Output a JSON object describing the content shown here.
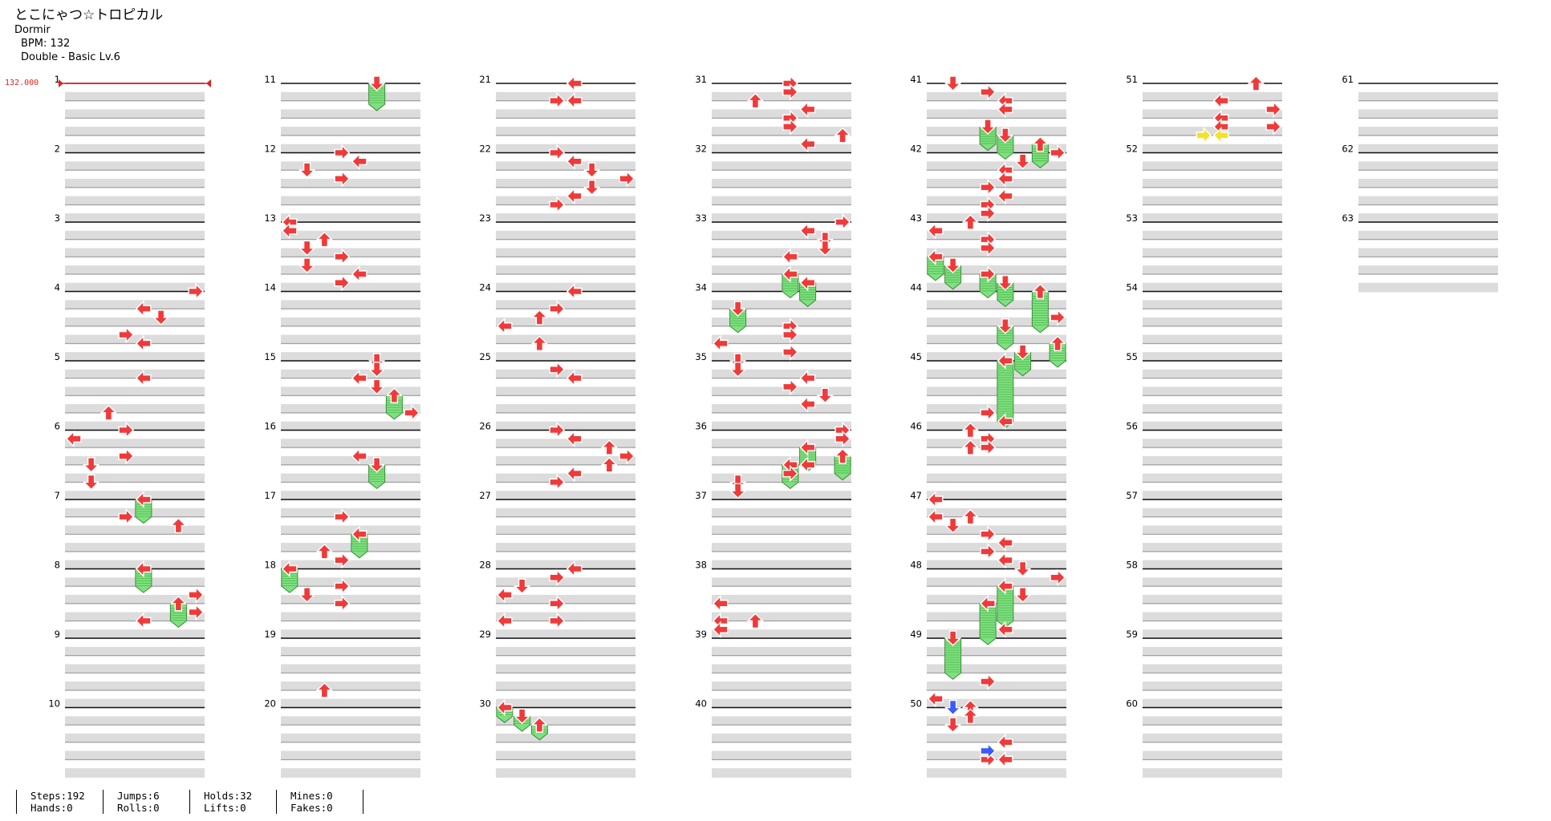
{
  "song": {
    "title": "とこにゃつ☆トロピカル",
    "artist": "Dormir",
    "bpm": "BPM: 132",
    "chart": "Double - Basic  Lv.6"
  },
  "bpm_marker": "132.000",
  "measure_labels": [
    "1",
    "2",
    "3",
    "4",
    "5",
    "6",
    "7",
    "8",
    "9",
    "10",
    "11",
    "12",
    "13",
    "14",
    "15",
    "16",
    "17",
    "18",
    "19",
    "20",
    "21",
    "22",
    "23",
    "24",
    "25",
    "26",
    "27",
    "28",
    "29",
    "30",
    "31",
    "32",
    "33",
    "34",
    "35",
    "36",
    "37",
    "38",
    "39",
    "40",
    "41",
    "42",
    "43",
    "44",
    "45",
    "46",
    "47",
    "48",
    "49",
    "50",
    "51",
    "52",
    "53",
    "54",
    "55",
    "56",
    "57",
    "58",
    "59",
    "60",
    "61",
    "62",
    "63"
  ],
  "stats": {
    "steps": "Steps:192",
    "hands": "Hands:0",
    "jumps": "Jumps:6",
    "rolls": "Rolls:0",
    "holds": "Holds:32",
    "lifts": "Lifts:0",
    "mines": "Mines:0",
    "fakes": "Fakes:0"
  },
  "colors": {
    "arrow": "#f03a3a",
    "hold": "#7fe07f",
    "special_blue": "#3b5bff",
    "special_yellow": "#f2e22a",
    "stripe": "#dcdcdc",
    "bpm_line": "#e02020"
  },
  "notes": [
    {
      "m": 1,
      "b": 0,
      "l": 0,
      "type": "bpm"
    },
    {
      "m": 4,
      "b": 0,
      "l": 7,
      "d": "R"
    },
    {
      "m": 4,
      "b": 1,
      "l": 4,
      "d": "L"
    },
    {
      "m": 4,
      "b": 1.5,
      "l": 5,
      "d": "D"
    },
    {
      "m": 4,
      "b": 2.5,
      "l": 3,
      "d": "R"
    },
    {
      "m": 4,
      "b": 3,
      "l": 4,
      "d": "L"
    },
    {
      "m": 5,
      "b": 1,
      "l": 4,
      "d": "L"
    },
    {
      "m": 5,
      "b": 3,
      "l": 2,
      "d": "U"
    },
    {
      "m": 5,
      "b": 4,
      "l": 3,
      "d": "R"
    },
    {
      "m": 6,
      "b": 0.5,
      "l": 0,
      "d": "L"
    },
    {
      "m": 6,
      "b": 1.5,
      "l": 3,
      "d": "R"
    },
    {
      "m": 6,
      "b": 2,
      "l": 1,
      "d": "D"
    },
    {
      "m": 6,
      "b": 3,
      "l": 1,
      "d": "D"
    },
    {
      "m": 7,
      "b": 0,
      "l": 4,
      "d": "L",
      "hold": 1
    },
    {
      "m": 7,
      "b": 1,
      "l": 3,
      "d": "R"
    },
    {
      "m": 7,
      "b": 1.5,
      "l": 6,
      "d": "U"
    },
    {
      "m": 8,
      "b": 0,
      "l": 4,
      "d": "L",
      "hold": 1
    },
    {
      "m": 8,
      "b": 1.5,
      "l": 7,
      "d": "R"
    },
    {
      "m": 8,
      "b": 2,
      "l": 6,
      "d": "U",
      "hold": 1
    },
    {
      "m": 8,
      "b": 2.5,
      "l": 7,
      "d": "R"
    },
    {
      "m": 8,
      "b": 3,
      "l": 4,
      "d": "L"
    },
    {
      "m": 11,
      "b": 0,
      "l": 5,
      "d": "D",
      "hold": 1.2
    },
    {
      "m": 12,
      "b": 0,
      "l": 3,
      "d": "R"
    },
    {
      "m": 12,
      "b": 0.5,
      "l": 4,
      "d": "L"
    },
    {
      "m": 12,
      "b": 1,
      "l": 1,
      "d": "D"
    },
    {
      "m": 12,
      "b": 1.5,
      "l": 3,
      "d": "R"
    },
    {
      "m": 13,
      "b": 0,
      "l": 0,
      "d": "L"
    },
    {
      "m": 13,
      "b": 0.5,
      "l": 0,
      "d": "L"
    },
    {
      "m": 13,
      "b": 1,
      "l": 2,
      "d": "U"
    },
    {
      "m": 13,
      "b": 1.5,
      "l": 1,
      "d": "D"
    },
    {
      "m": 13,
      "b": 2,
      "l": 3,
      "d": "R"
    },
    {
      "m": 13,
      "b": 2.5,
      "l": 1,
      "d": "D"
    },
    {
      "m": 13,
      "b": 3,
      "l": 4,
      "d": "L"
    },
    {
      "m": 13,
      "b": 3.5,
      "l": 3,
      "d": "R"
    },
    {
      "m": 15,
      "b": 0,
      "l": 5,
      "d": "D"
    },
    {
      "m": 15,
      "b": 0.5,
      "l": 5,
      "d": "D"
    },
    {
      "m": 15,
      "b": 1,
      "l": 4,
      "d": "L"
    },
    {
      "m": 15,
      "b": 1.5,
      "l": 5,
      "d": "D"
    },
    {
      "m": 15,
      "b": 2,
      "l": 6,
      "d": "U",
      "hold": 1
    },
    {
      "m": 15,
      "b": 3,
      "l": 7,
      "d": "R"
    },
    {
      "m": 16,
      "b": 1.5,
      "l": 4,
      "d": "L"
    },
    {
      "m": 16,
      "b": 2,
      "l": 5,
      "d": "D",
      "hold": 1
    },
    {
      "m": 17,
      "b": 1,
      "l": 3,
      "d": "R"
    },
    {
      "m": 17,
      "b": 2,
      "l": 4,
      "d": "L",
      "hold": 1
    },
    {
      "m": 17,
      "b": 3,
      "l": 2,
      "d": "U"
    },
    {
      "m": 17,
      "b": 3.5,
      "l": 3,
      "d": "R"
    },
    {
      "m": 18,
      "b": 0,
      "l": 0,
      "d": "L",
      "hold": 1
    },
    {
      "m": 18,
      "b": 1,
      "l": 3,
      "d": "R"
    },
    {
      "m": 18,
      "b": 1.5,
      "l": 1,
      "d": "D"
    },
    {
      "m": 18,
      "b": 2,
      "l": 3,
      "d": "R"
    },
    {
      "m": 19,
      "b": 3,
      "l": 2,
      "d": "U"
    },
    {
      "m": 21,
      "b": 0,
      "l": 4,
      "d": "L"
    },
    {
      "m": 21,
      "b": 1,
      "l": 3,
      "d": "R"
    },
    {
      "m": 21,
      "b": 1,
      "l": 4,
      "d": "L"
    },
    {
      "m": 22,
      "b": 0,
      "l": 3,
      "d": "R"
    },
    {
      "m": 22,
      "b": 0.5,
      "l": 4,
      "d": "L"
    },
    {
      "m": 22,
      "b": 1,
      "l": 5,
      "d": "D"
    },
    {
      "m": 22,
      "b": 1.5,
      "l": 7,
      "d": "R"
    },
    {
      "m": 22,
      "b": 2,
      "l": 5,
      "d": "D"
    },
    {
      "m": 22,
      "b": 2.5,
      "l": 4,
      "d": "L"
    },
    {
      "m": 22,
      "b": 3,
      "l": 3,
      "d": "R"
    },
    {
      "m": 24,
      "b": 0,
      "l": 4,
      "d": "L"
    },
    {
      "m": 24,
      "b": 1,
      "l": 3,
      "d": "R"
    },
    {
      "m": 24,
      "b": 1.5,
      "l": 2,
      "d": "U"
    },
    {
      "m": 24,
      "b": 2,
      "l": 0,
      "d": "L"
    },
    {
      "m": 24,
      "b": 3,
      "l": 2,
      "d": "U"
    },
    {
      "m": 25,
      "b": 0.5,
      "l": 3,
      "d": "R"
    },
    {
      "m": 25,
      "b": 1,
      "l": 4,
      "d": "L"
    },
    {
      "m": 26,
      "b": 0,
      "l": 3,
      "d": "R"
    },
    {
      "m": 26,
      "b": 0.5,
      "l": 4,
      "d": "L"
    },
    {
      "m": 26,
      "b": 1,
      "l": 6,
      "d": "U"
    },
    {
      "m": 26,
      "b": 1.5,
      "l": 7,
      "d": "R"
    },
    {
      "m": 26,
      "b": 2,
      "l": 6,
      "d": "U"
    },
    {
      "m": 26,
      "b": 2.5,
      "l": 4,
      "d": "L"
    },
    {
      "m": 26,
      "b": 3,
      "l": 3,
      "d": "R"
    },
    {
      "m": 28,
      "b": 0,
      "l": 4,
      "d": "L"
    },
    {
      "m": 28,
      "b": 0.5,
      "l": 3,
      "d": "R"
    },
    {
      "m": 28,
      "b": 1,
      "l": 1,
      "d": "D"
    },
    {
      "m": 28,
      "b": 1.5,
      "l": 0,
      "d": "L"
    },
    {
      "m": 28,
      "b": 2,
      "l": 3,
      "d": "R"
    },
    {
      "m": 28,
      "b": 3,
      "l": 0,
      "d": "L"
    },
    {
      "m": 28,
      "b": 3,
      "l": 3,
      "d": "R"
    },
    {
      "m": 30,
      "b": 0,
      "l": 0,
      "d": "L",
      "hold": 0.5
    },
    {
      "m": 30,
      "b": 0.5,
      "l": 1,
      "d": "D",
      "hold": 0.5
    },
    {
      "m": 30,
      "b": 1,
      "l": 2,
      "d": "U",
      "hold": 0.5
    },
    {
      "m": 31,
      "b": 0,
      "l": 4,
      "d": "R"
    },
    {
      "m": 31,
      "b": 0.5,
      "l": 4,
      "d": "R"
    },
    {
      "m": 31,
      "b": 1,
      "l": 2,
      "d": "U"
    },
    {
      "m": 31,
      "b": 1.5,
      "l": 5,
      "d": "L"
    },
    {
      "m": 31,
      "b": 2,
      "l": 4,
      "d": "R"
    },
    {
      "m": 31,
      "b": 2.5,
      "l": 4,
      "d": "R"
    },
    {
      "m": 31,
      "b": 3,
      "l": 7,
      "d": "U"
    },
    {
      "m": 31,
      "b": 3.5,
      "l": 5,
      "d": "L"
    },
    {
      "m": 33,
      "b": 0,
      "l": 7,
      "d": "R"
    },
    {
      "m": 33,
      "b": 0.5,
      "l": 5,
      "d": "L"
    },
    {
      "m": 33,
      "b": 1,
      "l": 6,
      "d": "D"
    },
    {
      "m": 33,
      "b": 1.5,
      "l": 6,
      "d": "D"
    },
    {
      "m": 33,
      "b": 2,
      "l": 4,
      "d": "L"
    },
    {
      "m": 33,
      "b": 3,
      "l": 4,
      "d": "L",
      "hold": 1
    },
    {
      "m": 33,
      "b": 3.5,
      "l": 5,
      "d": "L",
      "hold": 1
    },
    {
      "m": 34,
      "b": 1,
      "l": 1,
      "d": "D",
      "hold": 1
    },
    {
      "m": 34,
      "b": 2,
      "l": 4,
      "d": "R"
    },
    {
      "m": 34,
      "b": 2.5,
      "l": 4,
      "d": "R"
    },
    {
      "m": 34,
      "b": 3,
      "l": 0,
      "d": "L"
    },
    {
      "m": 34,
      "b": 3.5,
      "l": 4,
      "d": "R"
    },
    {
      "m": 35,
      "b": 0,
      "l": 1,
      "d": "D"
    },
    {
      "m": 35,
      "b": 0.5,
      "l": 1,
      "d": "D"
    },
    {
      "m": 35,
      "b": 1,
      "l": 5,
      "d": "L"
    },
    {
      "m": 35,
      "b": 1.5,
      "l": 4,
      "d": "R"
    },
    {
      "m": 35,
      "b": 2,
      "l": 6,
      "d": "D"
    },
    {
      "m": 35,
      "b": 2.5,
      "l": 5,
      "d": "L"
    },
    {
      "m": 36,
      "b": 0,
      "l": 7,
      "d": "R"
    },
    {
      "m": 36,
      "b": 0.5,
      "l": 7,
      "d": "R"
    },
    {
      "m": 36,
      "b": 1,
      "l": 5,
      "d": "L",
      "hold": 1
    },
    {
      "m": 36,
      "b": 1.5,
      "l": 7,
      "d": "U",
      "hold": 1
    },
    {
      "m": 36,
      "b": 2,
      "l": 4,
      "d": "L",
      "hold": 1
    },
    {
      "m": 36,
      "b": 2,
      "l": 5,
      "d": "L"
    },
    {
      "m": 36,
      "b": 2.5,
      "l": 4,
      "d": "R"
    },
    {
      "m": 36,
      "b": 3,
      "l": 1,
      "d": "D"
    },
    {
      "m": 36,
      "b": 3.5,
      "l": 1,
      "d": "D"
    },
    {
      "m": 38,
      "b": 2,
      "l": 0,
      "d": "L"
    },
    {
      "m": 38,
      "b": 3,
      "l": 2,
      "d": "U"
    },
    {
      "m": 38,
      "b": 3,
      "l": 0,
      "d": "L"
    },
    {
      "m": 38,
      "b": 3.5,
      "l": 0,
      "d": "L"
    },
    {
      "m": 41,
      "b": 0,
      "l": 1,
      "d": "D"
    },
    {
      "m": 41,
      "b": 0.5,
      "l": 3,
      "d": "R"
    },
    {
      "m": 41,
      "b": 1,
      "l": 4,
      "d": "L"
    },
    {
      "m": 41,
      "b": 1.5,
      "l": 4,
      "d": "L"
    },
    {
      "m": 41,
      "b": 2.5,
      "l": 3,
      "d": "D",
      "hold": 1
    },
    {
      "m": 41,
      "b": 3,
      "l": 4,
      "d": "D",
      "hold": 1
    },
    {
      "m": 41,
      "b": 3.5,
      "l": 6,
      "d": "U",
      "hold": 1
    },
    {
      "m": 42,
      "b": 0,
      "l": 7,
      "d": "R"
    },
    {
      "m": 42,
      "b": 0.5,
      "l": 5,
      "d": "D"
    },
    {
      "m": 42,
      "b": 1,
      "l": 4,
      "d": "L"
    },
    {
      "m": 42,
      "b": 1.5,
      "l": 4,
      "d": "L"
    },
    {
      "m": 42,
      "b": 2,
      "l": 3,
      "d": "R"
    },
    {
      "m": 42,
      "b": 2.5,
      "l": 4,
      "d": "L"
    },
    {
      "m": 42,
      "b": 3,
      "l": 3,
      "d": "R"
    },
    {
      "m": 42,
      "b": 3.5,
      "l": 3,
      "d": "R"
    },
    {
      "m": 43,
      "b": 0,
      "l": 2,
      "d": "U"
    },
    {
      "m": 43,
      "b": 0.5,
      "l": 0,
      "d": "L"
    },
    {
      "m": 43,
      "b": 1,
      "l": 3,
      "d": "R"
    },
    {
      "m": 43,
      "b": 1.5,
      "l": 3,
      "d": "R"
    },
    {
      "m": 43,
      "b": 2,
      "l": 0,
      "d": "L",
      "hold": 1
    },
    {
      "m": 43,
      "b": 2.5,
      "l": 1,
      "d": "D",
      "hold": 1
    },
    {
      "m": 43,
      "b": 3,
      "l": 3,
      "d": "R",
      "hold": 1
    },
    {
      "m": 43,
      "b": 3.5,
      "l": 4,
      "d": "D",
      "hold": 1
    },
    {
      "m": 44,
      "b": 0,
      "l": 6,
      "d": "U",
      "hold": 2
    },
    {
      "m": 44,
      "b": 1.5,
      "l": 7,
      "d": "R"
    },
    {
      "m": 44,
      "b": 2,
      "l": 4,
      "d": "D",
      "hold": 1
    },
    {
      "m": 44,
      "b": 3,
      "l": 7,
      "d": "U",
      "hold": 1
    },
    {
      "m": 44,
      "b": 3.5,
      "l": 5,
      "d": "D",
      "hold": 1
    },
    {
      "m": 45,
      "b": 0,
      "l": 4,
      "d": "L",
      "hold": 3.5
    },
    {
      "m": 45,
      "b": 3,
      "l": 3,
      "d": "R"
    },
    {
      "m": 45,
      "b": 3.5,
      "l": 4,
      "d": "L"
    },
    {
      "m": 46,
      "b": 0,
      "l": 2,
      "d": "U"
    },
    {
      "m": 46,
      "b": 0.5,
      "l": 3,
      "d": "R"
    },
    {
      "m": 46,
      "b": 1,
      "l": 2,
      "d": "U"
    },
    {
      "m": 46,
      "b": 1,
      "l": 3,
      "d": "R"
    },
    {
      "m": 47,
      "b": 0,
      "l": 0,
      "d": "L"
    },
    {
      "m": 47,
      "b": 1,
      "l": 2,
      "d": "U"
    },
    {
      "m": 47,
      "b": 1,
      "l": 0,
      "d": "L"
    },
    {
      "m": 47,
      "b": 1.5,
      "l": 1,
      "d": "D"
    },
    {
      "m": 47,
      "b": 2,
      "l": 3,
      "d": "R"
    },
    {
      "m": 47,
      "b": 2.5,
      "l": 4,
      "d": "L"
    },
    {
      "m": 47,
      "b": 3,
      "l": 3,
      "d": "R"
    },
    {
      "m": 47,
      "b": 3.5,
      "l": 4,
      "d": "L"
    },
    {
      "m": 48,
      "b": 0,
      "l": 5,
      "d": "D"
    },
    {
      "m": 48,
      "b": 0.5,
      "l": 7,
      "d": "R"
    },
    {
      "m": 48,
      "b": 1,
      "l": 4,
      "d": "L",
      "hold": 2
    },
    {
      "m": 48,
      "b": 1.5,
      "l": 5,
      "d": "D"
    },
    {
      "m": 48,
      "b": 2,
      "l": 3,
      "d": "L",
      "hold": 2
    },
    {
      "m": 48,
      "b": 3.5,
      "l": 4,
      "d": "L"
    },
    {
      "m": 49,
      "b": 0,
      "l": 1,
      "d": "D",
      "hold": 2
    },
    {
      "m": 49,
      "b": 2.5,
      "l": 3,
      "d": "R"
    },
    {
      "m": 49,
      "b": 3.5,
      "l": 0,
      "d": "L"
    },
    {
      "m": 50,
      "b": 0,
      "l": 1,
      "d": "D",
      "type": "blue"
    },
    {
      "m": 50,
      "b": 0,
      "l": 2,
      "d": "U"
    },
    {
      "m": 50,
      "b": 0.5,
      "l": 2,
      "d": "U"
    },
    {
      "m": 50,
      "b": 1,
      "l": 1,
      "d": "D"
    },
    {
      "m": 50,
      "b": 3,
      "l": 3,
      "d": "R"
    },
    {
      "m": 50,
      "b": 2,
      "l": 4,
      "d": "L"
    },
    {
      "m": 50,
      "b": 2.5,
      "l": 3,
      "d": "R",
      "type": "blue"
    },
    {
      "m": 50,
      "b": 3,
      "l": 4,
      "d": "L"
    },
    {
      "m": 51,
      "b": 0,
      "l": 6,
      "d": "U"
    },
    {
      "m": 51,
      "b": 1,
      "l": 4,
      "d": "L"
    },
    {
      "m": 51,
      "b": 1.5,
      "l": 7,
      "d": "R"
    },
    {
      "m": 51,
      "b": 2,
      "l": 4,
      "d": "L"
    },
    {
      "m": 51,
      "b": 2.5,
      "l": 4,
      "d": "L"
    },
    {
      "m": 51,
      "b": 2.5,
      "l": 7,
      "d": "R"
    },
    {
      "m": 51,
      "b": 3,
      "l": 3,
      "d": "R",
      "type": "yellow"
    },
    {
      "m": 51,
      "b": 3,
      "l": 4,
      "d": "L",
      "type": "yellow"
    }
  ]
}
